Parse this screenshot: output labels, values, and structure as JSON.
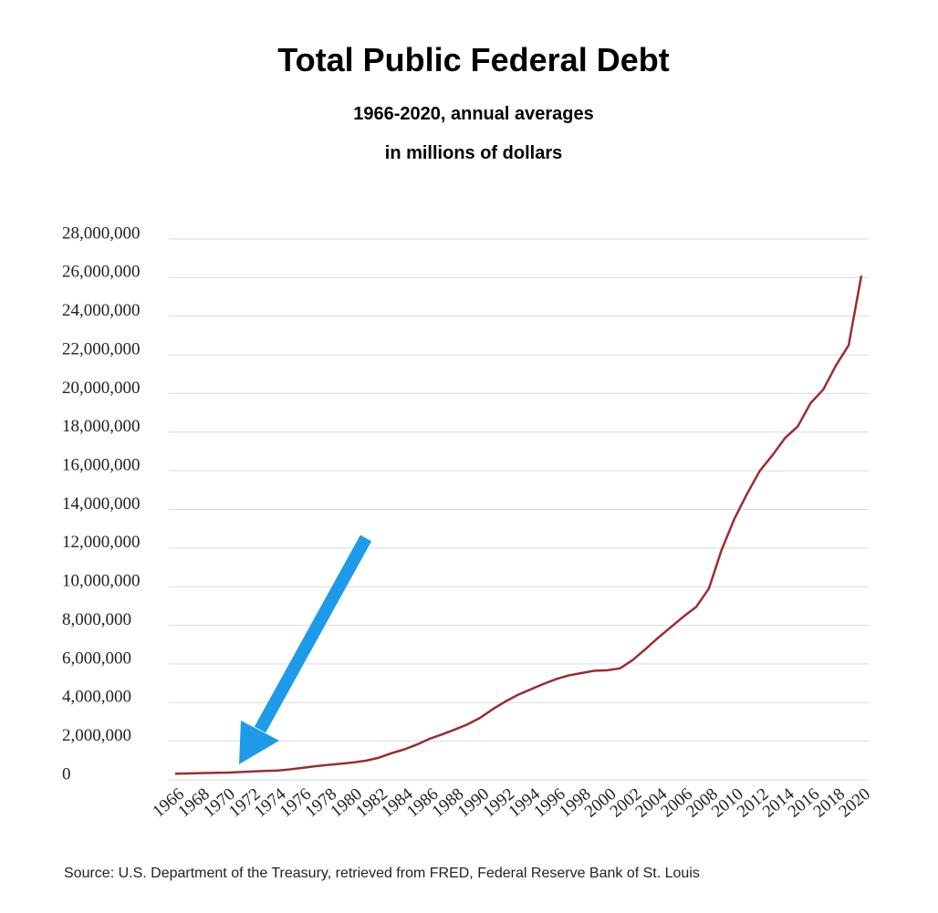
{
  "chart_data": {
    "type": "line",
    "title": "Total Public Federal Debt",
    "subtitle": "1966-2020, annual averages",
    "units_note": "in millions of dollars",
    "source": "Source: U.S. Department of the Treasury, retrieved from FRED, Federal Reserve Bank of St. Louis",
    "x": [
      1966,
      1967,
      1968,
      1969,
      1970,
      1971,
      1972,
      1973,
      1974,
      1975,
      1976,
      1977,
      1978,
      1979,
      1980,
      1981,
      1982,
      1983,
      1984,
      1985,
      1986,
      1987,
      1988,
      1989,
      1990,
      1991,
      1992,
      1993,
      1994,
      1995,
      1996,
      1997,
      1998,
      1999,
      2000,
      2001,
      2002,
      2003,
      2004,
      2005,
      2006,
      2007,
      2008,
      2009,
      2010,
      2011,
      2012,
      2013,
      2014,
      2015,
      2016,
      2017,
      2018,
      2019,
      2020
    ],
    "series": [
      {
        "name": "Total Public Federal Debt",
        "color": "#9b2d30",
        "values": [
          320000,
          330000,
          350000,
          360000,
          370000,
          400000,
          430000,
          460000,
          480000,
          540000,
          620000,
          700000,
          770000,
          830000,
          900000,
          990000,
          1140000,
          1370000,
          1570000,
          1820000,
          2120000,
          2350000,
          2600000,
          2870000,
          3210000,
          3660000,
          4060000,
          4410000,
          4690000,
          4970000,
          5220000,
          5410000,
          5530000,
          5650000,
          5670000,
          5770000,
          6200000,
          6760000,
          7350000,
          7900000,
          8450000,
          8950000,
          9900000,
          11900000,
          13500000,
          14800000,
          15990000,
          16800000,
          17700000,
          18300000,
          19500000,
          20200000,
          21450000,
          22500000,
          26100000
        ]
      }
    ],
    "xlim": [
      1966,
      2020
    ],
    "xticks": [
      1966,
      1968,
      1970,
      1972,
      1974,
      1976,
      1978,
      1980,
      1982,
      1984,
      1986,
      1988,
      1990,
      1992,
      1994,
      1996,
      1998,
      2000,
      2002,
      2004,
      2006,
      2008,
      2010,
      2012,
      2014,
      2016,
      2018,
      2020
    ],
    "ylim": [
      0,
      28000000
    ],
    "yticks": [
      0,
      {
        "value": 2000000,
        "label": "2,000,000"
      },
      {
        "value": 4000000,
        "label": "4,000,000"
      },
      {
        "value": 6000000,
        "label": "6,000,000"
      },
      {
        "value": 8000000,
        "label": "8,000,000"
      },
      {
        "value": 10000000,
        "label": "10,000,000"
      },
      {
        "value": 12000000,
        "label": "12,000,000"
      },
      {
        "value": 14000000,
        "label": "14,000,000"
      },
      {
        "value": 16000000,
        "label": "16,000,000"
      },
      {
        "value": 18000000,
        "label": "18,000,000"
      },
      {
        "value": 20000000,
        "label": "20,000,000"
      },
      {
        "value": 22000000,
        "label": "22,000,000"
      },
      {
        "value": 24000000,
        "label": "24,000,000"
      },
      {
        "value": 26000000,
        "label": "26,000,000"
      },
      {
        "value": 28000000,
        "label": "28,000,000"
      }
    ],
    "grid": true
  }
}
